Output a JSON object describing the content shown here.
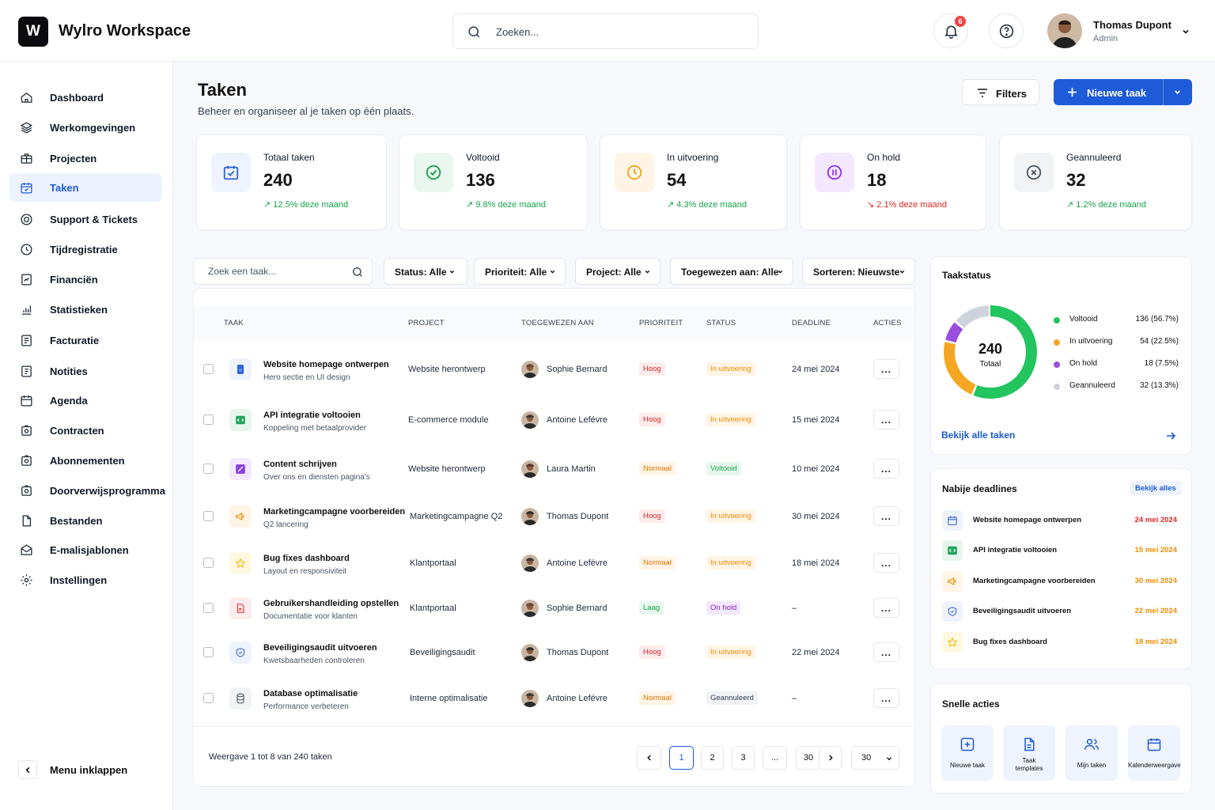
{
  "header": {
    "logo_letter": "W",
    "app_title": "Wylro Workspace",
    "search_placeholder": "Zoeken...",
    "notif_count": "6",
    "user_name": "Thomas Dupont",
    "user_role": "Admin"
  },
  "sidebar": {
    "items": [
      {
        "label": "Dashboard",
        "icon": "home-icon"
      },
      {
        "label": "Werkomgevingen",
        "icon": "layers-icon"
      },
      {
        "label": "Projecten",
        "icon": "briefcase-icon"
      },
      {
        "label": "Taken",
        "icon": "calendar-check-icon",
        "active": true
      },
      {
        "label": "Support & Tickets",
        "icon": "support-icon"
      },
      {
        "label": "Tijdregistratie",
        "icon": "clock-icon"
      },
      {
        "label": "Financiën",
        "icon": "finance-icon"
      },
      {
        "label": "Statistieken",
        "icon": "chart-icon"
      },
      {
        "label": "Facturatie",
        "icon": "invoice-icon"
      },
      {
        "label": "Notities",
        "icon": "notes-icon"
      },
      {
        "label": "Agenda",
        "icon": "calendar-icon"
      },
      {
        "label": "Contracten",
        "icon": "contract-icon"
      },
      {
        "label": "Abonnementen",
        "icon": "subscription-icon"
      },
      {
        "label": "Doorverwijsprogramma",
        "icon": "referral-icon"
      },
      {
        "label": "Bestanden",
        "icon": "files-icon"
      },
      {
        "label": "E-malisjablonen",
        "icon": "mail-icon"
      },
      {
        "label": "Instellingen",
        "icon": "gear-icon"
      }
    ],
    "collapse_label": "Menu inklappen"
  },
  "page": {
    "title": "Taken",
    "subtitle": "Beheer en organiseer al je taken op één plaats.",
    "filters_label": "Filters",
    "new_task_label": "Nieuwe taak"
  },
  "stats": [
    {
      "label": "Totaal taken",
      "value": "240",
      "trend": "12.5% deze maand",
      "dir": "up",
      "icon": "task-check-icon",
      "color": "#2f63d6",
      "bg": "#eef3fd"
    },
    {
      "label": "Voltooid",
      "value": "136",
      "trend": "9.8% deze maand",
      "dir": "up",
      "icon": "check-circle-icon",
      "color": "#16a34a",
      "bg": "#e9f7ef"
    },
    {
      "label": "In uitvoering",
      "value": "54",
      "trend": "4.3% deze maand",
      "dir": "up",
      "icon": "clock-icon",
      "color": "#f59e0b",
      "bg": "#fff4e5"
    },
    {
      "label": "On hold",
      "value": "18",
      "trend": "2.1% deze maand",
      "dir": "down",
      "icon": "pause-circle-icon",
      "color": "#9333ea",
      "bg": "#f3e8ff"
    },
    {
      "label": "Geannuleerd",
      "value": "32",
      "trend": "1.2% deze maand",
      "dir": "up",
      "icon": "x-circle-icon",
      "color": "#4b5563",
      "bg": "#f1f3f5"
    }
  ],
  "toolbar": {
    "search_placeholder": "Zoek een taak...",
    "status": "Status: Alle",
    "priority": "Prioriteit: Alle",
    "project": "Project: Alle",
    "assigned": "Toegewezen aan: Alle",
    "sort": "Sorteren: Nieuwste"
  },
  "table": {
    "columns": [
      "TAAK",
      "PROJECT",
      "TOEGEWEZEN AAN",
      "PRIORITEIT",
      "STATUS",
      "DEADLINE",
      "ACTIES"
    ],
    "rows": [
      {
        "name": "Website homepage ontwerpen",
        "sub": "Hero sectie en UI design",
        "project": "Website herontwerp",
        "assignee": "Sophie Bernard",
        "priority": "Hoog",
        "status": "In uitvoering",
        "deadline": "24 mei 2024",
        "icon": "document-icon"
      },
      {
        "name": "API integratie voltooien",
        "sub": "Koppeling met betaalprovider",
        "project": "E-commerce module",
        "assignee": "Antoine Lefévre",
        "priority": "Hoog",
        "status": "In uitvoering",
        "deadline": "15 mei 2024",
        "icon": "code-icon"
      },
      {
        "name": "Content schrijven",
        "sub": "Over ons en diensten pagina's",
        "project": "Website herontwerp",
        "assignee": "Laura Martin",
        "priority": "Normaal",
        "status": "Voltooid",
        "deadline": "10 mei 2024",
        "icon": "pen-icon"
      },
      {
        "name": "Marketingcampagne voorbereiden",
        "sub": "Q2 lancering",
        "project": "Marketingcampagne Q2",
        "assignee": "Thomas Dupont",
        "priority": "Hoog",
        "status": "In uitvoering",
        "deadline": "30 mei 2024",
        "icon": "megaphone-icon"
      },
      {
        "name": "Bug fixes dashboard",
        "sub": "Layout en responsiviteit",
        "project": "Klantportaal",
        "assignee": "Antoine Lefévre",
        "priority": "Normaal",
        "status": "In uitvoering",
        "deadline": "18 mei 2024",
        "icon": "star-icon"
      },
      {
        "name": "Gebruikershandleiding opstellen",
        "sub": "Documentatie voor klanten",
        "project": "Klantportaal",
        "assignee": "Sophie Bernard",
        "priority": "Laag",
        "status": "On hold",
        "deadline": "–",
        "icon": "pdf-icon"
      },
      {
        "name": "Beveiligingsaudit uitvoeren",
        "sub": "Kwetsbaarheden controleren",
        "project": "Beveiligingsaudit",
        "assignee": "Thomas Dupont",
        "priority": "Hoog",
        "status": "In uitvoering",
        "deadline": "22 mei 2024",
        "icon": "shield-icon"
      },
      {
        "name": "Database optimalisatie",
        "sub": "Performance verbeteren",
        "project": "Interne optimalisatie",
        "assignee": "Antoine Lefévre",
        "priority": "Normaal",
        "status": "Geannuleerd",
        "deadline": "–",
        "icon": "database-icon"
      }
    ],
    "actions_label": "...",
    "footer_text": "Weergave 1 tot 8 van 240 taken",
    "pages": [
      "1",
      "2",
      "3",
      "...",
      "30"
    ],
    "per_page": "30"
  },
  "taakstatus": {
    "title": "Taakstatus",
    "total": "240",
    "total_label": "Totaal",
    "link": "Bekijk alle taken"
  },
  "chart_data": {
    "type": "pie",
    "title": "Taakstatus",
    "categories": [
      "Voltooid",
      "In uitvoering",
      "On hold",
      "Geannuleerd"
    ],
    "values": [
      136,
      54,
      18,
      32
    ],
    "labels": [
      "136 (56.7%)",
      "54 (22.5%)",
      "18 (7.5%)",
      "32 (13.3%)"
    ],
    "colors": [
      "#22c55e",
      "#f5a623",
      "#9b4de0",
      "#cfd4dc"
    ]
  },
  "deadlines": {
    "title": "Nabije deadlines",
    "link": "Bekijk alles",
    "items": [
      {
        "name": "Website homepage ontwerpen",
        "date": "24 mei 2024",
        "icon": "calendar-icon",
        "color": "#dc2626"
      },
      {
        "name": "API integratie voltooien",
        "date": "15 mei 2024",
        "icon": "code-icon",
        "color": "#f08c00"
      },
      {
        "name": "Marketingcampagne voorbereiden",
        "date": "30 mei 2024",
        "icon": "megaphone-icon",
        "color": "#f08c00"
      },
      {
        "name": "Beveiligingsaudit uitvoeren",
        "date": "22 mei 2024",
        "icon": "shield-icon",
        "color": "#f08c00"
      },
      {
        "name": "Bug fixes dashboard",
        "date": "18 mei 2024",
        "icon": "star-icon",
        "color": "#f08c00"
      }
    ]
  },
  "quick_actions": {
    "title": "Snelle acties",
    "items": [
      {
        "label": "Nieuwe taak",
        "icon": "plus-square-icon"
      },
      {
        "label": "Taak templates",
        "icon": "template-icon"
      },
      {
        "label": "Mijn taken",
        "icon": "users-icon"
      },
      {
        "label": "Kalenderweergave",
        "icon": "calendar-icon"
      }
    ]
  }
}
